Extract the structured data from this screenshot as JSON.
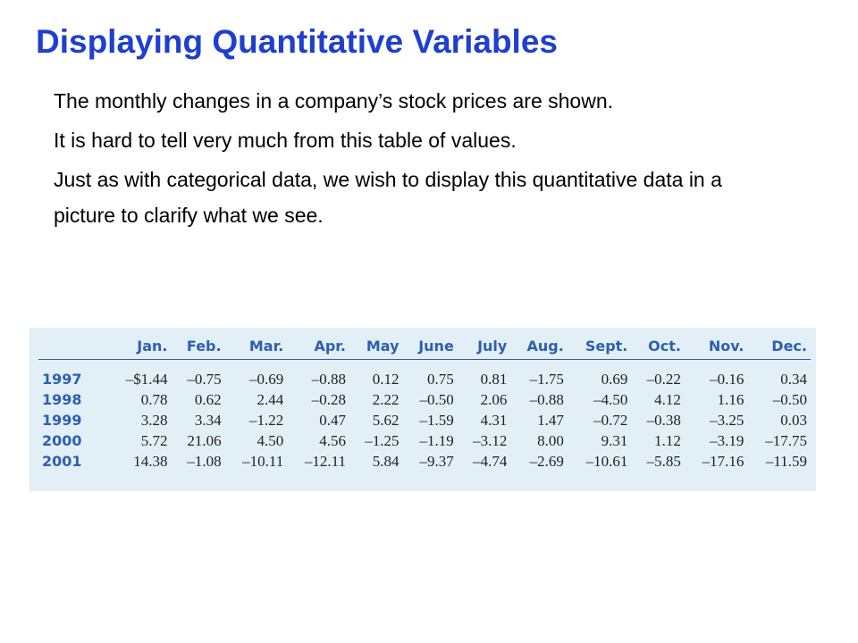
{
  "title": "Displaying Quantitative Variables",
  "paragraphs": [
    "The monthly changes in a company’s stock prices are shown.",
    "It is hard to tell very much from this table of values.",
    "Just as with categorical data, we wish to display this quantitative data in a picture to clarify what we see."
  ],
  "table": {
    "columns": [
      "",
      "Jan.",
      "Feb.",
      "Mar.",
      "Apr.",
      "May",
      "June",
      "July",
      "Aug.",
      "Sept.",
      "Oct.",
      "Nov.",
      "Dec."
    ],
    "rows": [
      [
        "1997",
        "–$1.44",
        "–0.75",
        "–0.69",
        "–0.88",
        "0.12",
        "0.75",
        "0.81",
        "–1.75",
        "0.69",
        "–0.22",
        "–0.16",
        "0.34"
      ],
      [
        "1998",
        "0.78",
        "0.62",
        "2.44",
        "–0.28",
        "2.22",
        "–0.50",
        "2.06",
        "–0.88",
        "–4.50",
        "4.12",
        "1.16",
        "–0.50"
      ],
      [
        "1999",
        "3.28",
        "3.34",
        "–1.22",
        "0.47",
        "5.62",
        "–1.59",
        "4.31",
        "1.47",
        "–0.72",
        "–0.38",
        "–3.25",
        "0.03"
      ],
      [
        "2000",
        "5.72",
        "21.06",
        "4.50",
        "4.56",
        "–1.25",
        "–1.19",
        "–3.12",
        "8.00",
        "9.31",
        "1.12",
        "–3.19",
        "–17.75"
      ],
      [
        "2001",
        "14.38",
        "–1.08",
        "–10.11",
        "–12.11",
        "5.84",
        "–9.37",
        "–4.74",
        "–2.69",
        "–10.61",
        "–5.85",
        "–17.16",
        "–11.59"
      ]
    ]
  },
  "colors": {
    "title": "#1f3fcf",
    "table_header": "#2e5fb0",
    "table_background": "#e2eff7",
    "body_text": "#000000"
  }
}
